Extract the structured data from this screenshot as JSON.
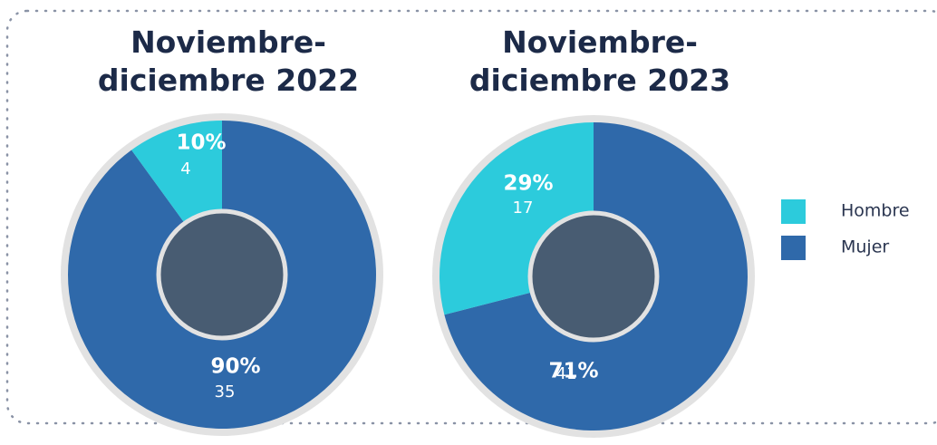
{
  "chart_data": [
    {
      "type": "donut",
      "title": "Noviembre-diciembre 2022",
      "categories": [
        "Hombre",
        "Mujer"
      ],
      "values": [
        10,
        90
      ],
      "value_labels": [
        "10%",
        "90%"
      ],
      "counts": [
        4,
        35
      ],
      "colors": [
        "#2ccbdc",
        "#2f69aa"
      ]
    },
    {
      "type": "donut",
      "title": "Noviembre-diciembre 2023",
      "categories": [
        "Hombre",
        "Mujer"
      ],
      "values": [
        29,
        71
      ],
      "value_labels": [
        "29%",
        "71%"
      ],
      "counts": [
        17,
        41
      ],
      "colors": [
        "#2ccbdc",
        "#2f69aa"
      ]
    }
  ]
}
